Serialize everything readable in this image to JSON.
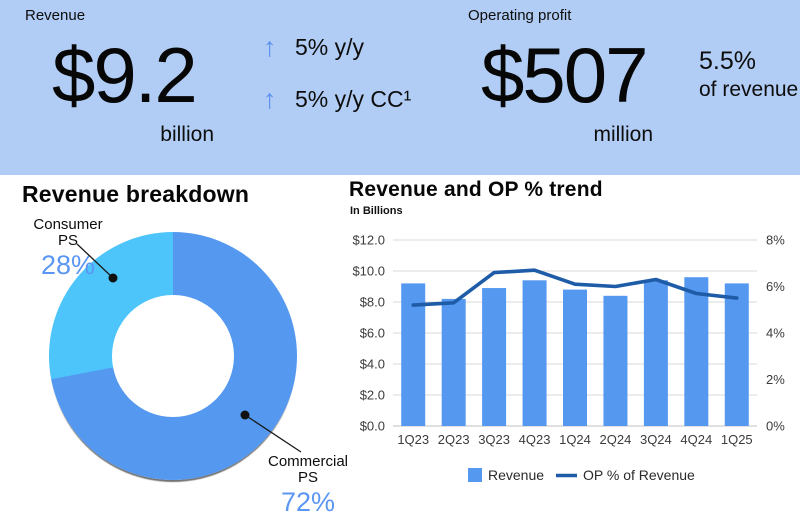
{
  "banner": {
    "revenue": {
      "label": "Revenue",
      "value": "$9.2",
      "unit": "billion",
      "growth_yy": "5% y/y",
      "growth_cc": "5% y/y CC¹"
    },
    "operating_profit": {
      "label": "Operating profit",
      "value": "$507",
      "unit": "million",
      "margin_value": "5.5%",
      "margin_caption": "of revenue"
    }
  },
  "icons": {
    "up_arrow": "↑"
  },
  "colors": {
    "banner_bg": "#b1cdf5",
    "arrow_blue": "#5b90ee",
    "bar_blue": "#5598f0",
    "sky_blue": "#4dc5fb",
    "line_navy": "#1f5ca8",
    "pct_text_blue": "#5b97f2",
    "grid_gray": "#d8d8d8",
    "axis_text": "#3c3c3c"
  },
  "chart_data": [
    {
      "type": "pie",
      "variant": "donut",
      "title": "Revenue breakdown",
      "start_angle_deg": 0,
      "direction": "clockwise",
      "slices": [
        {
          "label": "Commercial PS",
          "callout_lines": [
            "Commercial",
            "PS"
          ],
          "value": 72,
          "display": "72%",
          "color": "#5598f0"
        },
        {
          "label": "Consumer PS",
          "callout_lines": [
            "Consumer",
            "PS"
          ],
          "value": 28,
          "display": "28%",
          "color": "#4dc5fb"
        }
      ]
    },
    {
      "type": "bar",
      "title": "Revenue and OP % trend",
      "units_note": "In Billions",
      "categories": [
        "1Q23",
        "2Q23",
        "3Q23",
        "4Q23",
        "1Q24",
        "2Q24",
        "3Q24",
        "4Q24",
        "1Q25"
      ],
      "series": [
        {
          "name": "Revenue",
          "render": "bar",
          "axis": "left",
          "color": "#5598f0",
          "values": [
            9.2,
            8.2,
            8.9,
            9.4,
            8.8,
            8.4,
            9.4,
            9.6,
            9.2
          ]
        },
        {
          "name": "OP % of Revenue",
          "render": "line",
          "axis": "right",
          "color": "#1f5ca8",
          "values": [
            5.2,
            5.3,
            6.6,
            6.7,
            6.1,
            6.0,
            6.3,
            5.7,
            5.5
          ]
        }
      ],
      "left_axis": {
        "min": 0,
        "max": 12,
        "step": 2,
        "tick_labels": [
          "$0.0",
          "$2.0",
          "$4.0",
          "$6.0",
          "$8.0",
          "$10.0",
          "$12.0"
        ]
      },
      "right_axis": {
        "min": 0,
        "max": 8,
        "step": 2,
        "tick_labels": [
          "0%",
          "2%",
          "4%",
          "6%",
          "8%"
        ]
      },
      "grid": true,
      "legend_position": "bottom",
      "legend": [
        "Revenue",
        "OP % of Revenue"
      ]
    }
  ]
}
